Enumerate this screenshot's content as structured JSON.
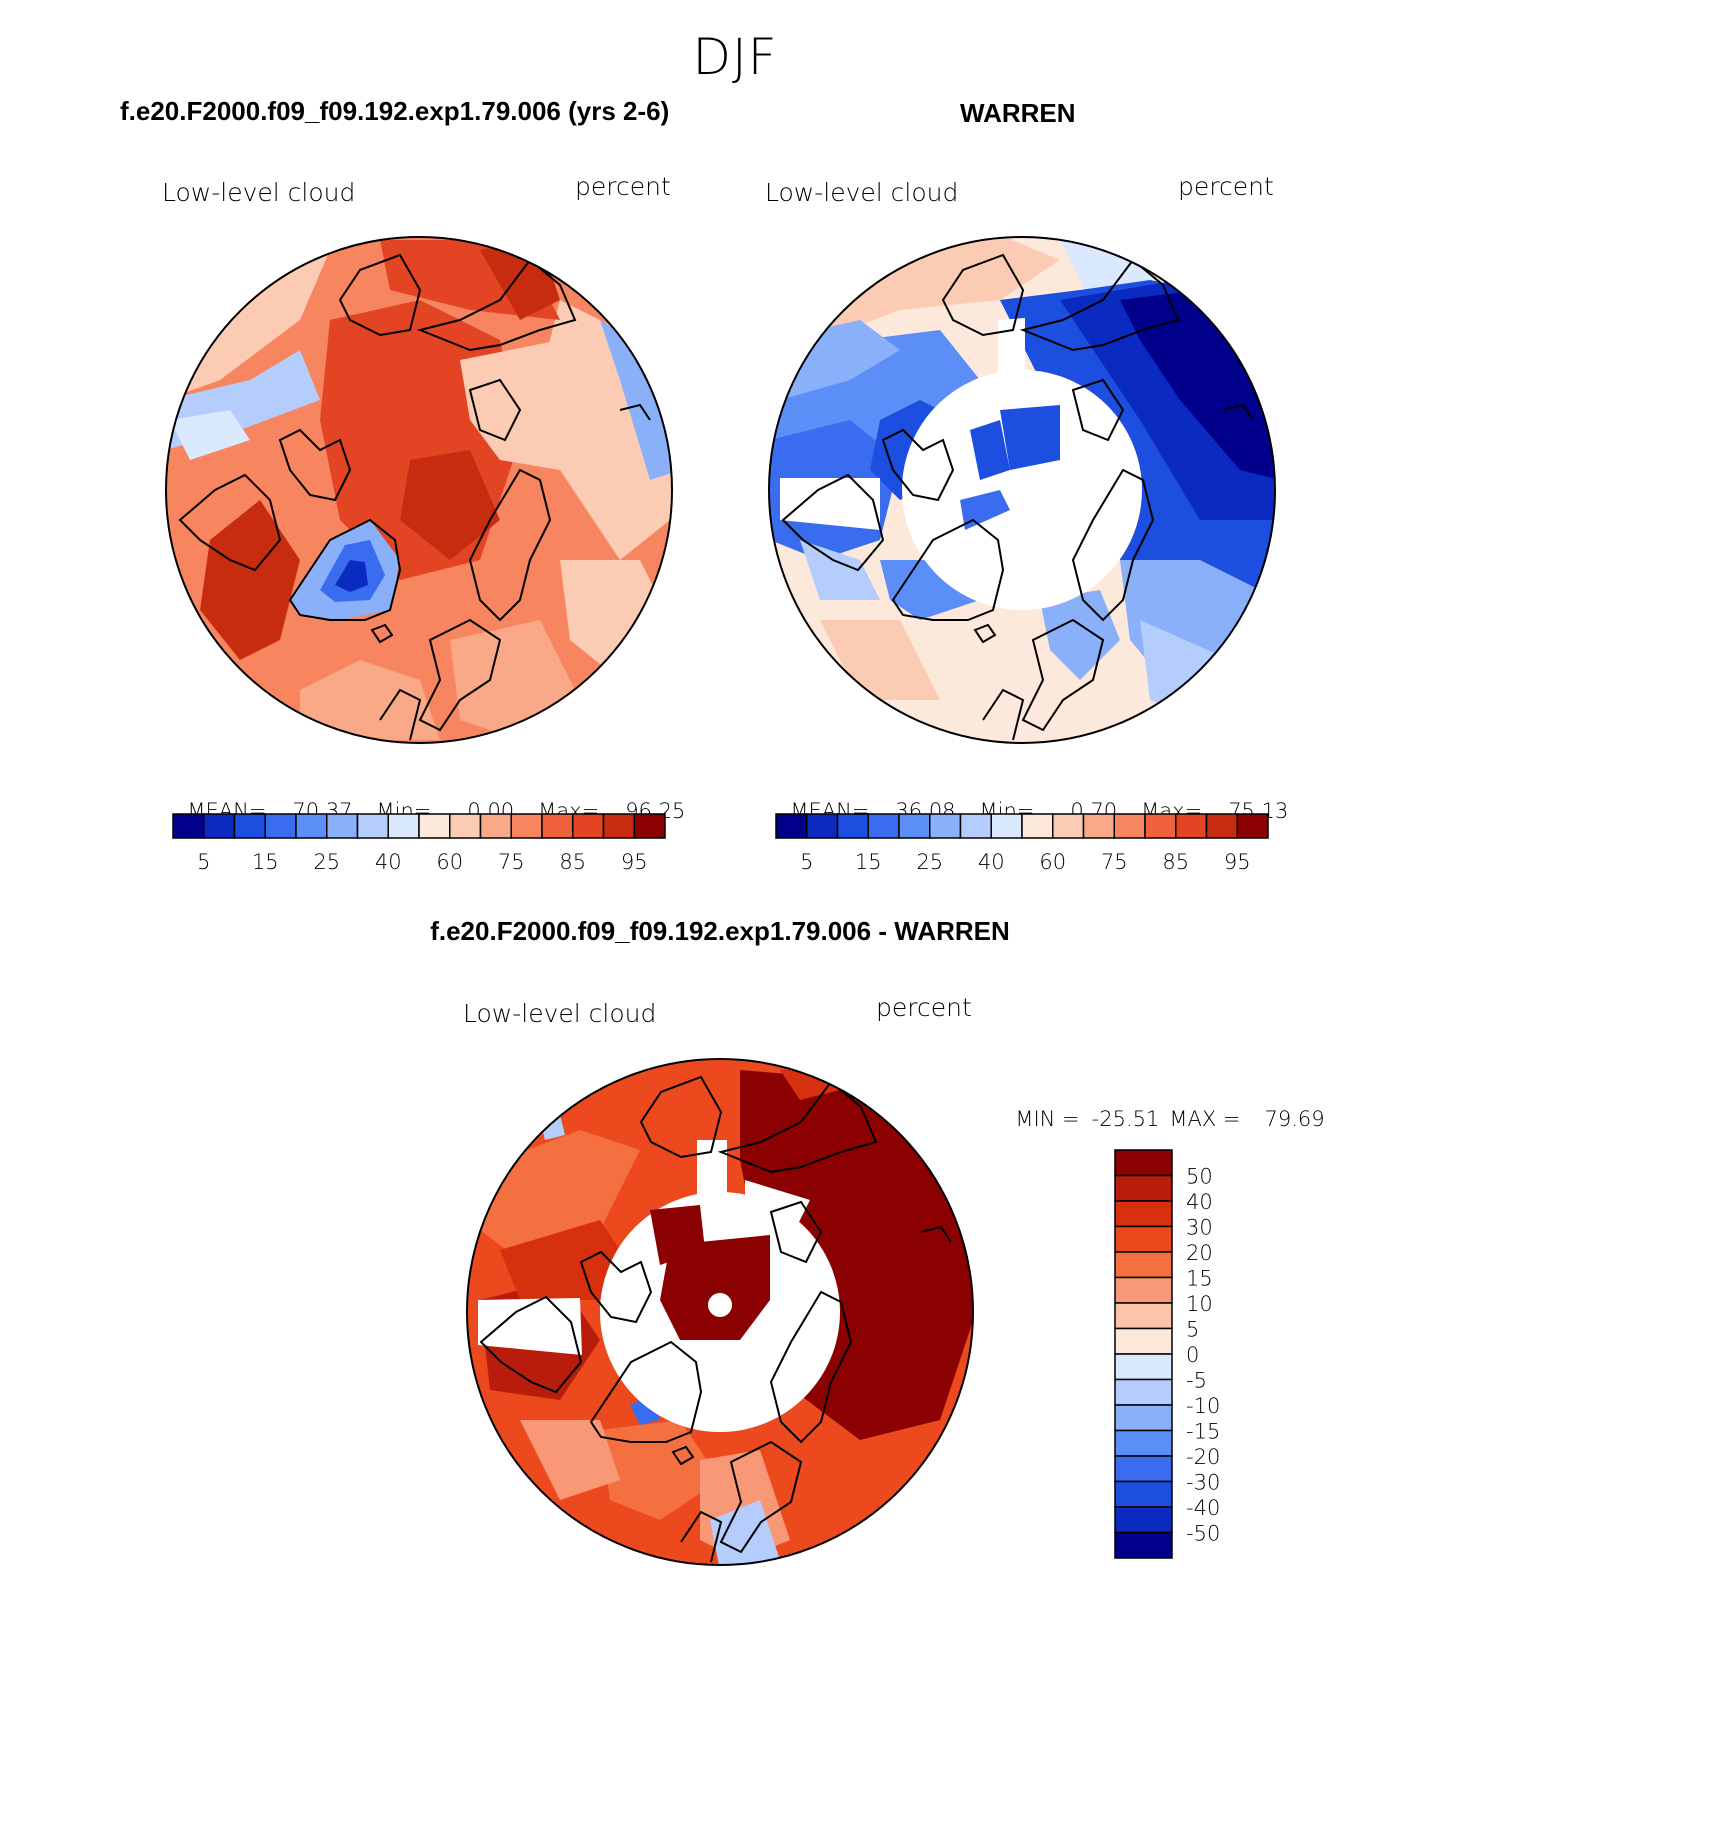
{
  "season": "DJF",
  "chart_data": [
    {
      "type": "heatmap",
      "title": "f.e20.F2000.f09_f09.192.exp1.79.006 (yrs 2-6)",
      "left_label": "Low-level cloud",
      "right_label": "percent",
      "stats": {
        "mean_label": "MEAN=",
        "mean": "70.37",
        "min_label": "Min=",
        "min": "0.00",
        "max_label": "Max=",
        "max": "96.25"
      },
      "colorbar": {
        "levels": [
          "5",
          "15",
          "25",
          "40",
          "60",
          "75",
          "85",
          "95"
        ],
        "colors": [
          "#00008b",
          "#0a2ac0",
          "#1c4ee0",
          "#3a6cf0",
          "#5c8ef8",
          "#8ab0fa",
          "#b4cdfc",
          "#dbe9fe",
          "#fde9dc",
          "#fccbb4",
          "#f9a888",
          "#f68560",
          "#f0623b",
          "#e24424",
          "#c72c10",
          "#8b0000"
        ]
      },
      "field": "mostly 70-95 percent over Arctic Ocean; minimum over Greenland interior"
    },
    {
      "type": "heatmap",
      "title": "WARREN",
      "left_label": "Low-level cloud",
      "right_label": "percent",
      "stats": {
        "mean_label": "MEAN=",
        "mean": "36.08",
        "min_label": "Min=",
        "min": "0.70",
        "max_label": "Max=",
        "max": "75.13"
      },
      "colorbar": {
        "levels": [
          "5",
          "15",
          "25",
          "40",
          "60",
          "75",
          "85",
          "95"
        ],
        "colors": [
          "#00008b",
          "#0a2ac0",
          "#1c4ee0",
          "#3a6cf0",
          "#5c8ef8",
          "#8ab0fa",
          "#b4cdfc",
          "#dbe9fe",
          "#fde9dc",
          "#fccbb4",
          "#f9a888",
          "#f68560",
          "#f0623b",
          "#e24424",
          "#c72c10",
          "#8b0000"
        ]
      },
      "field": "low values over Eurasia and Pacific sector, missing data near pole"
    },
    {
      "type": "heatmap",
      "title": "f.e20.F2000.f09_f09.192.exp1.79.006 - WARREN",
      "left_label": "Low-level cloud",
      "right_label": "percent",
      "stats": {
        "min_label": "MIN =",
        "min": "-25.51",
        "max_label": "MAX =",
        "max": "79.69"
      },
      "colorbar": {
        "levels": [
          "50",
          "40",
          "30",
          "20",
          "15",
          "10",
          "5",
          "0",
          "-5",
          "-10",
          "-15",
          "-20",
          "-30",
          "-40",
          "-50"
        ],
        "colors": [
          "#8b0000",
          "#b71c0c",
          "#d7300f",
          "#ec4a1e",
          "#f57040",
          "#f99876",
          "#fcc4a8",
          "#fde9dc",
          "#dbe9fe",
          "#b4cdfc",
          "#8ab0fa",
          "#5c8ef8",
          "#3a6cf0",
          "#1c4ee0",
          "#0a2ac0",
          "#00008b"
        ]
      },
      "field": "positive differences almost everywhere; largest over Eurasian sector"
    }
  ]
}
